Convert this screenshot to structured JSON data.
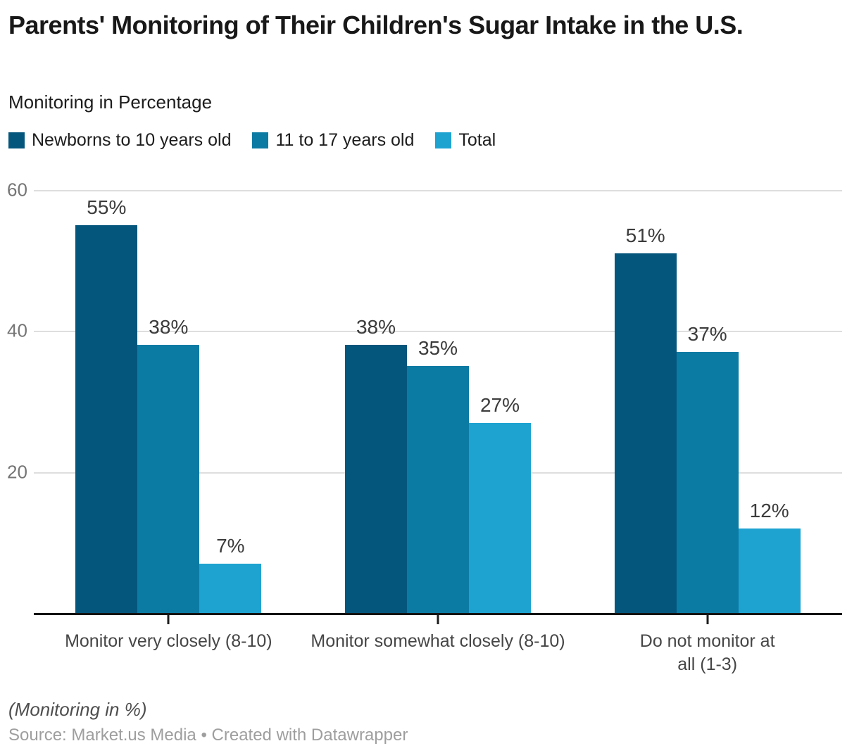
{
  "header": {
    "title": "Parents' Monitoring of Their Children's Sugar Intake in the U.S.",
    "subtitle": "Monitoring in Percentage"
  },
  "legend": {
    "items": [
      {
        "label": "Newborns to 10 years old",
        "color": "#05567D"
      },
      {
        "label": "11 to 17 years old",
        "color": "#0C7BA3"
      },
      {
        "label": "Total",
        "color": "#1EA3D1"
      }
    ]
  },
  "chart_data": {
    "type": "bar",
    "title": "Parents' Monitoring of Their Children's Sugar Intake in the U.S.",
    "subtitle": "Monitoring in Percentage",
    "categories": [
      "Monitor very closely (8-10)",
      "Monitor somewhat closely (8-10)",
      "Do not monitor at all (1-3)"
    ],
    "series": [
      {
        "name": "Newborns to 10 years old",
        "color": "#05567D",
        "values": [
          55,
          38,
          51
        ]
      },
      {
        "name": "11 to 17 years old",
        "color": "#0C7BA3",
        "values": [
          38,
          35,
          37
        ]
      },
      {
        "name": "Total",
        "color": "#1EA3D1",
        "values": [
          7,
          27,
          12
        ]
      }
    ],
    "value_suffix": "%",
    "xlabel": "",
    "ylabel": "",
    "ylim": [
      0,
      60
    ],
    "yticks": [
      20,
      40,
      60
    ],
    "grid": true,
    "legend_position": "top",
    "colors": {
      "grid": "#dedede",
      "axis": "#141414",
      "tick_label": "#757575",
      "value_label": "#3c3c3c"
    }
  },
  "footer": {
    "note": "(Monitoring in %)",
    "source": "Source: Market.us Media • Created with Datawrapper"
  }
}
